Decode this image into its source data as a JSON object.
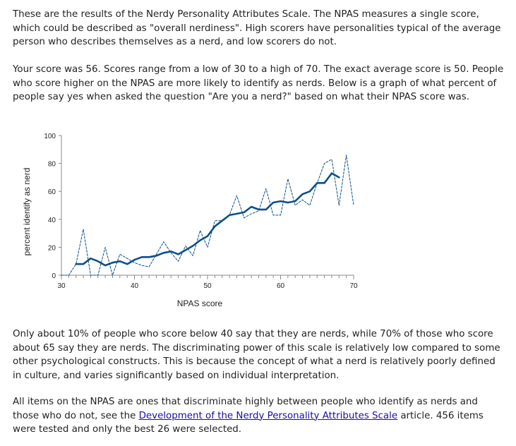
{
  "paragraphs": {
    "p1": "These are the results of the Nerdy Personality Attributes Scale. The NPAS measures a single score, which could be described as \"overall nerdiness\". High scorers have personalities typical of the average person who describes themselves as a nerd, and low scorers do not.",
    "p2": "Your score was 56. Scores range from a low of 30 to a high of 70. The exact average score is 50. People who score higher on the NPAS are more likely to identify as nerds. Below is a graph of what percent of people say yes when asked the question \"Are you a nerd?\" based on what their NPAS score was.",
    "p3": "Only about 10% of people who score below 40 say that they are nerds, while 70% of those who score about 65 say they are nerds. The discriminating power of this scale is relatively low compared to some other psychological constructs. This is because the concept of what a nerd is relatively poorly defined in culture, and varies significantly based on individual interpretation.",
    "p4_before": "All items on the NPAS are ones that discriminate highly between people who identify as nerds and those who do not, see the ",
    "p4_link": "Development of the Nerdy Personality Attributes Scale",
    "p4_after": " article. 456 items were tested and only the best 26 were selected."
  },
  "chart_data": {
    "type": "line",
    "xlabel": "NPAS score",
    "ylabel": "percent identify as nerd",
    "xlim": [
      30,
      70
    ],
    "ylim": [
      0,
      100
    ],
    "xticks": [
      30,
      40,
      50,
      60,
      70
    ],
    "yticks": [
      0,
      20,
      40,
      60,
      80,
      100
    ],
    "grid": false,
    "legend": "none",
    "colors": {
      "series": "#0b4f8a",
      "axis": "#888888"
    },
    "series": [
      {
        "style": "dashed-thin",
        "x": [
          30,
          31,
          32,
          33,
          34,
          35,
          36,
          37,
          38,
          39,
          40,
          41,
          42,
          43,
          44,
          45,
          46,
          47,
          48,
          49,
          50,
          51,
          52,
          53,
          54,
          55,
          56,
          57,
          58,
          59,
          60,
          61,
          62,
          63,
          64,
          65,
          66,
          67,
          68,
          69,
          70
        ],
        "y": [
          0,
          0,
          8,
          33,
          0,
          0,
          20,
          0,
          15,
          12,
          9,
          7,
          6,
          15,
          24,
          16,
          10,
          21,
          14,
          32,
          20,
          39,
          39,
          43,
          57,
          41,
          44,
          46,
          62,
          43,
          43,
          69,
          50,
          54,
          50,
          66,
          80,
          83,
          50,
          86,
          50
        ]
      },
      {
        "style": "solid-thick",
        "x": [
          32,
          33,
          34,
          35,
          36,
          37,
          38,
          39,
          40,
          41,
          42,
          43,
          44,
          45,
          46,
          47,
          48,
          49,
          50,
          51,
          52,
          53,
          54,
          55,
          56,
          57,
          58,
          59,
          60,
          61,
          62,
          63,
          64,
          65,
          66,
          67,
          68
        ],
        "y": [
          8,
          8,
          12,
          10,
          7,
          9,
          10,
          8,
          11,
          13,
          13,
          14,
          16,
          17,
          15,
          18,
          21,
          25,
          28,
          35,
          39,
          43,
          44,
          45,
          49,
          47,
          47,
          52,
          53,
          52,
          53,
          58,
          60,
          66,
          66,
          73,
          70
        ]
      }
    ]
  }
}
